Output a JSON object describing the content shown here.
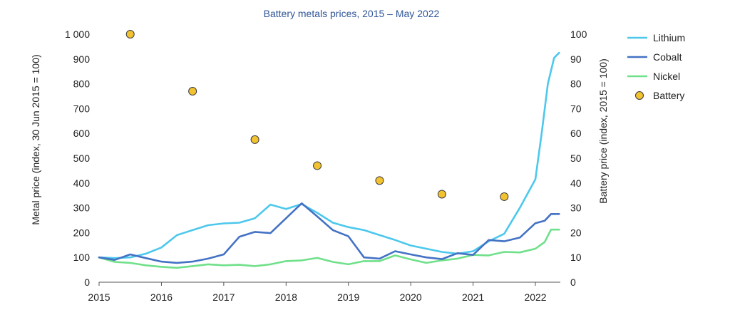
{
  "chart_data": {
    "type": "line",
    "title": "Battery metals prices, 2015 – May 2022",
    "ylabel_left": "Metal price (index, 30 Jun 2015 = 100)",
    "ylabel_right": "Battery price (index, 2015 = 100)",
    "xlim": [
      2015,
      2022.4
    ],
    "ylim_left": [
      0,
      1000
    ],
    "ylim_right": [
      0,
      100
    ],
    "x_ticks": [
      "2015",
      "2016",
      "2017",
      "2018",
      "2019",
      "2020",
      "2021",
      "2022"
    ],
    "y_ticks_left": [
      "0",
      "100",
      "200",
      "300",
      "400",
      "500",
      "600",
      "700",
      "800",
      "900",
      "1 000"
    ],
    "y_ticks_right": [
      "0",
      "10",
      "20",
      "30",
      "40",
      "50",
      "60",
      "70",
      "80",
      "90",
      "100"
    ],
    "colors": {
      "lithium": "#4dc8ec",
      "cobalt": "#4472c4",
      "nickel": "#70e08a",
      "battery": "#f2c230",
      "axis": "#555555",
      "title": "#2f5597"
    },
    "series": [
      {
        "name": "Lithium",
        "axis": "left",
        "x": [
          2015.0,
          2015.25,
          2015.5,
          2015.75,
          2016.0,
          2016.25,
          2016.5,
          2016.75,
          2017.0,
          2017.25,
          2017.5,
          2017.75,
          2018.0,
          2018.25,
          2018.5,
          2018.75,
          2019.0,
          2019.25,
          2019.5,
          2019.75,
          2020.0,
          2020.25,
          2020.5,
          2020.75,
          2021.0,
          2021.25,
          2021.5,
          2021.75,
          2022.0,
          2022.1,
          2022.2,
          2022.3,
          2022.38
        ],
        "y": [
          100,
          97,
          100,
          115,
          140,
          190,
          210,
          230,
          237,
          240,
          258,
          313,
          295,
          315,
          280,
          240,
          222,
          210,
          190,
          170,
          148,
          135,
          122,
          115,
          125,
          165,
          195,
          300,
          415,
          600,
          800,
          905,
          925
        ]
      },
      {
        "name": "Cobalt",
        "axis": "left",
        "x": [
          2015.0,
          2015.25,
          2015.5,
          2015.75,
          2016.0,
          2016.25,
          2016.5,
          2016.75,
          2017.0,
          2017.25,
          2017.5,
          2017.75,
          2018.0,
          2018.25,
          2018.5,
          2018.75,
          2019.0,
          2019.25,
          2019.5,
          2019.75,
          2020.0,
          2020.25,
          2020.5,
          2020.75,
          2021.0,
          2021.25,
          2021.5,
          2021.75,
          2022.0,
          2022.15,
          2022.25,
          2022.38
        ],
        "y": [
          100,
          90,
          112,
          97,
          83,
          78,
          83,
          95,
          112,
          183,
          203,
          198,
          258,
          318,
          265,
          210,
          185,
          100,
          95,
          125,
          112,
          100,
          93,
          117,
          110,
          170,
          165,
          180,
          238,
          248,
          275,
          275
        ]
      },
      {
        "name": "Nickel",
        "axis": "left",
        "x": [
          2015.0,
          2015.25,
          2015.5,
          2015.75,
          2016.0,
          2016.25,
          2016.5,
          2016.75,
          2017.0,
          2017.25,
          2017.5,
          2017.75,
          2018.0,
          2018.25,
          2018.5,
          2018.75,
          2019.0,
          2019.25,
          2019.5,
          2019.75,
          2020.0,
          2020.25,
          2020.5,
          2020.75,
          2021.0,
          2021.25,
          2021.5,
          2021.75,
          2022.0,
          2022.15,
          2022.25,
          2022.38
        ],
        "y": [
          100,
          82,
          78,
          68,
          62,
          58,
          65,
          72,
          68,
          70,
          65,
          72,
          85,
          88,
          98,
          82,
          72,
          85,
          85,
          108,
          92,
          78,
          88,
          95,
          110,
          108,
          122,
          120,
          135,
          162,
          212,
          212
        ]
      }
    ],
    "scatter": {
      "name": "Battery",
      "axis": "right",
      "x": [
        2015.5,
        2016.5,
        2017.5,
        2018.5,
        2019.5,
        2020.5,
        2021.5
      ],
      "y": [
        100,
        77,
        57.5,
        47,
        41,
        35.5,
        34.5
      ]
    },
    "legend": {
      "position": "right",
      "entries": [
        "Lithium",
        "Cobalt",
        "Nickel",
        "Battery"
      ]
    }
  }
}
